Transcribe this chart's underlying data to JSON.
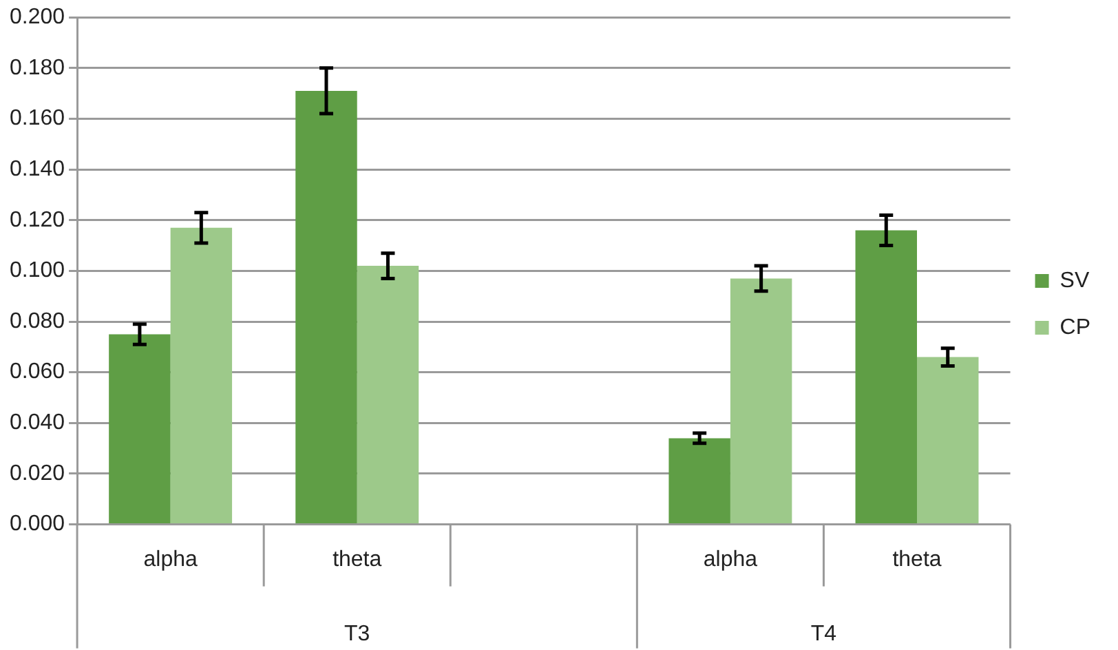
{
  "chart_data": {
    "type": "bar",
    "categories": [
      "alpha",
      "theta",
      null,
      "alpha",
      "theta"
    ],
    "series": [
      {
        "name": "SV",
        "color": "#5f9e45",
        "values": [
          0.075,
          0.171,
          null,
          0.034,
          0.116
        ],
        "errors": [
          0.004,
          0.009,
          null,
          0.002,
          0.006
        ]
      },
      {
        "name": "CP",
        "color": "#9dc98a",
        "values": [
          0.117,
          0.102,
          null,
          0.097,
          0.066
        ],
        "errors": [
          0.006,
          0.005,
          null,
          0.005,
          0.0035
        ]
      }
    ],
    "annotations": [
      "T3",
      "T4"
    ],
    "ylim": [
      0,
      0.2
    ],
    "yticks": [
      {
        "value": 0,
        "label": "0.000"
      },
      {
        "value": 0.02,
        "label": "0.020"
      },
      {
        "value": 0.04,
        "label": "0.040"
      },
      {
        "value": 0.06,
        "label": "0.060"
      },
      {
        "value": 0.08,
        "label": "0.080"
      },
      {
        "value": 0.1,
        "label": "0.100"
      },
      {
        "value": 0.12,
        "label": "0.120"
      },
      {
        "value": 0.14,
        "label": "0.140"
      },
      {
        "value": 0.16,
        "label": "0.160"
      },
      {
        "value": 0.18,
        "label": "0.180"
      },
      {
        "value": 0.2,
        "label": "0.200"
      }
    ],
    "grid": "y",
    "legend": "right"
  }
}
